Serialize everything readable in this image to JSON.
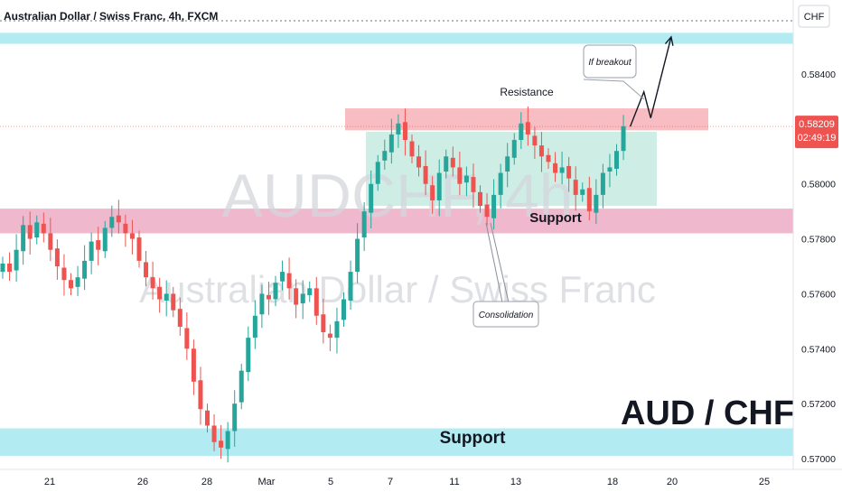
{
  "header": {
    "title": "Australian Dollar / Swiss Franc, 4h, FXCM"
  },
  "watermark": {
    "symbol": "AUDCHF, 4h",
    "name": "Australian Dollar / Swiss Franc"
  },
  "price_axis": {
    "currency": "CHF",
    "ticks": [
      "0.58400",
      "0.58200",
      "0.58000",
      "0.57800",
      "0.57600",
      "0.57400",
      "0.57200",
      "0.57000"
    ],
    "current_price": "0.58209",
    "countdown": "02:49:19"
  },
  "time_axis": {
    "ticks": [
      "21",
      "26",
      "28",
      "Mar",
      "5",
      "7",
      "11",
      "13",
      "18",
      "20",
      "25"
    ]
  },
  "annotations": {
    "resistance": "Resistance",
    "support_mid": "Support",
    "support_low": "Support",
    "consolidation": "Consolidation",
    "breakout": "If breakout",
    "pair": "AUD / CHF"
  },
  "colors": {
    "bull": "#26a69a",
    "bear": "#ef5350",
    "resistance_zone": "#f7b9bf",
    "support_zone": "#eeb0c8",
    "consolidation_zone": "#c9ece2",
    "cyan_zone": "#b2ebf2"
  },
  "chart_data": {
    "type": "candlestick",
    "symbol": "AUDCHF",
    "timeframe": "4h",
    "ylim": [
      0.5698,
      0.5858
    ],
    "date_ticks": [
      "21",
      "26",
      "28",
      "Mar",
      "5",
      "7",
      "11",
      "13",
      "18",
      "20",
      "25"
    ],
    "last_price": 0.58209,
    "zones": [
      {
        "name": "cyan-top",
        "low": 0.5851,
        "high": 0.5855
      },
      {
        "name": "resistance",
        "low": 0.58195,
        "high": 0.58275
      },
      {
        "name": "consolidation",
        "low": 0.5792,
        "high": 0.5819
      },
      {
        "name": "support",
        "low": 0.5782,
        "high": 0.5791
      },
      {
        "name": "support-low",
        "low": 0.5701,
        "high": 0.5711
      }
    ],
    "close_path": [
      0.5771,
      0.5768,
      0.5776,
      0.5785,
      0.578,
      0.5786,
      0.5782,
      0.5776,
      0.577,
      0.5765,
      0.5762,
      0.5766,
      0.5772,
      0.5779,
      0.5776,
      0.5784,
      0.5788,
      0.5786,
      0.5782,
      0.578,
      0.5772,
      0.5766,
      0.5762,
      0.5758,
      0.576,
      0.5754,
      0.5748,
      0.574,
      0.5728,
      0.5718,
      0.5712,
      0.5706,
      0.5704,
      0.571,
      0.572,
      0.5732,
      0.5744,
      0.5752,
      0.576,
      0.5758,
      0.5764,
      0.5768,
      0.5762,
      0.5756,
      0.576,
      0.5762,
      0.5752,
      0.5746,
      0.5744,
      0.575,
      0.5758,
      0.5768,
      0.578,
      0.579,
      0.58,
      0.5808,
      0.5812,
      0.5818,
      0.5822,
      0.5816,
      0.581,
      0.5806,
      0.58,
      0.5794,
      0.5804,
      0.581,
      0.5806,
      0.58,
      0.5803,
      0.5797,
      0.5792,
      0.5788,
      0.5796,
      0.5804,
      0.581,
      0.5816,
      0.5822,
      0.5818,
      0.5814,
      0.581,
      0.5808,
      0.5804,
      0.5806,
      0.5802,
      0.5796,
      0.5798,
      0.579,
      0.5796,
      0.5804,
      0.5806,
      0.5812,
      0.5821
    ],
    "projection": [
      {
        "t": 92,
        "price": 0.58209
      },
      {
        "t": 94,
        "price": 0.58335
      },
      {
        "t": 95,
        "price": 0.5824
      },
      {
        "t": 98,
        "price": 0.58535
      }
    ]
  }
}
